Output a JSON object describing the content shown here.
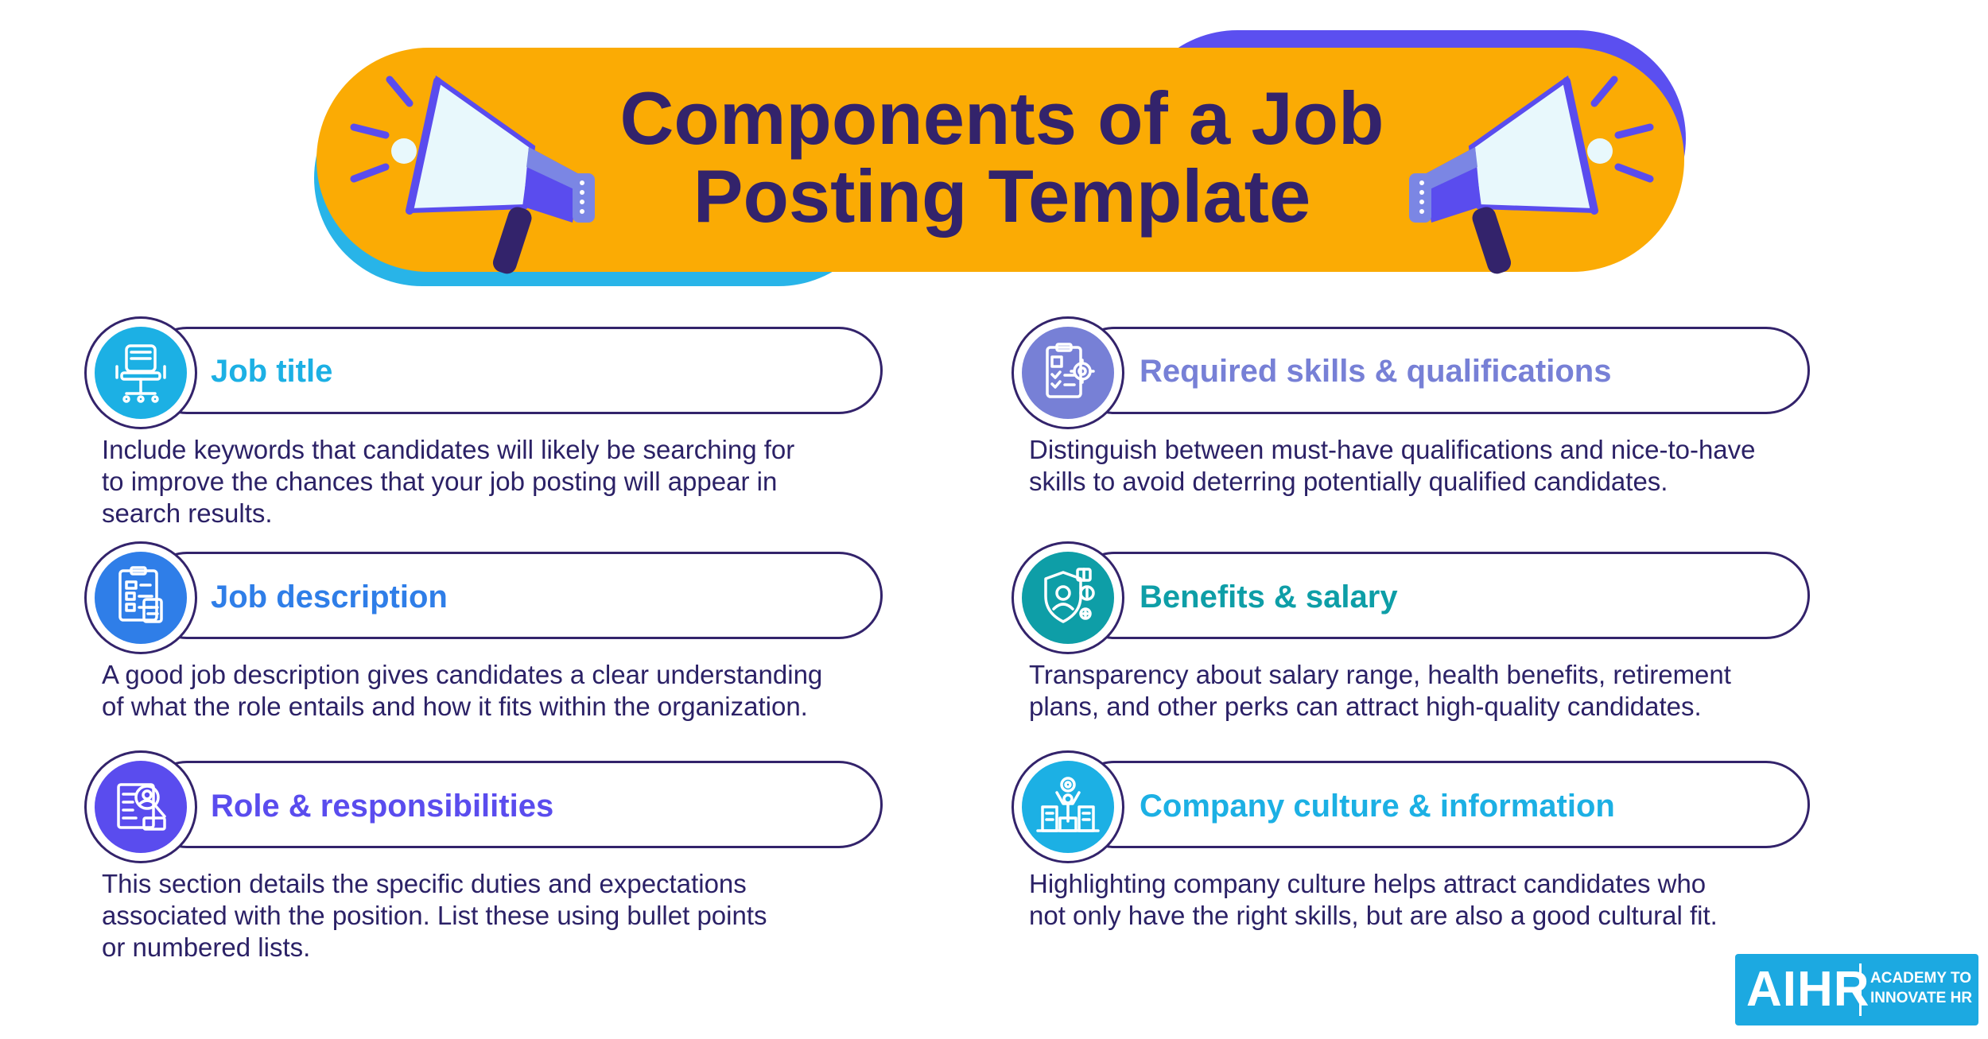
{
  "header": {
    "title_line1": "Components of a Job",
    "title_line2": "Posting Template"
  },
  "colors": {
    "banner": "#fbab04",
    "navy": "#33236b",
    "cyan": "#1cb0e4",
    "blue": "#2f7ee8",
    "purple": "#5a4cee",
    "lavender": "#7780d6",
    "teal": "#0e9ea7"
  },
  "sections": {
    "job_title": {
      "heading": "Job title",
      "icon": "office-chair-icon",
      "description": "Include keywords that candidates will likely be searching for\nto improve the chances that your job posting will appear in\nsearch results."
    },
    "job_description": {
      "heading": "Job description",
      "icon": "clipboard-document-icon",
      "description": " A good job description gives candidates a clear understanding\nof what the role entails and how it fits within the organization."
    },
    "roles": {
      "heading": "Role & responsibilities",
      "icon": "magnifier-profile-icon",
      "description": "This section details the specific duties and expectations\nassociated with the position. List these using bullet points\nor numbered lists."
    },
    "skills": {
      "heading": "Required skills & qualifications",
      "icon": "checklist-gear-icon",
      "description": "Distinguish between must-have qualifications and nice-to-have\nskills to avoid deterring potentially qualified candidates."
    },
    "benefits": {
      "heading": "Benefits & salary",
      "icon": "shield-benefits-icon",
      "description": "Transparency about salary range, health benefits, retirement\nplans, and other perks can attract high-quality candidates."
    },
    "culture": {
      "heading": "Company culture & information",
      "icon": "company-buildings-icon",
      "description": "Highlighting company culture helps attract candidates who\nnot only have the right skills, but are also a good cultural fit."
    }
  },
  "logo": {
    "main": "AIHR",
    "sub": "ACADEMY TO INNOVATE HR"
  }
}
